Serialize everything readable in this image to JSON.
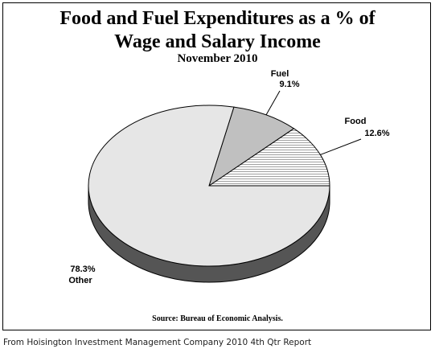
{
  "chart_data": {
    "type": "pie",
    "title_line1": "Food and Fuel Expenditures as a % of",
    "title_line2": "Wage and Salary Income",
    "subtitle": "November 2010",
    "slices": [
      {
        "label": "Food",
        "value": 12.6,
        "value_label": "12.6%",
        "color": "#ffffff",
        "pattern": "horizontal-lines"
      },
      {
        "label": "Fuel",
        "value": 9.1,
        "value_label": "9.1%",
        "color": "#c0c0c0"
      },
      {
        "label": "Other",
        "value": 78.3,
        "value_label": "78.3%",
        "color": "#e6e6e6"
      }
    ],
    "start_angle_deg": 0,
    "direction": "counterclockwise",
    "style": "3d-tilted",
    "side_color": "#555555",
    "source": "Source:  Bureau of Economic Analysis."
  },
  "caption": "From Hoisington Investment Management Company 2010 4th Qtr Report"
}
